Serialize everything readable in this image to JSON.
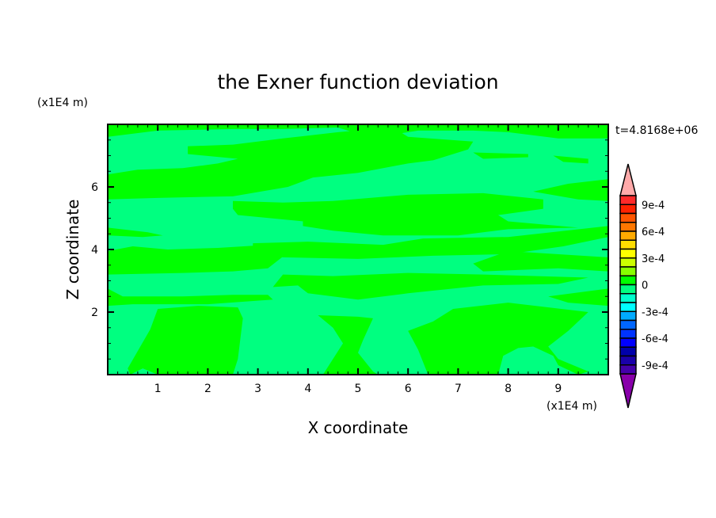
{
  "chart_data": {
    "type": "heatmap",
    "subtype": "filled-contour",
    "title": "the Exner function deviation",
    "xlabel": "X coordinate",
    "ylabel": "Z coordinate",
    "x_unit": "(x1E4 m)",
    "y_unit": "(x1E4 m)",
    "time_label": "t=4.8168e+06",
    "xlim": [
      0,
      10
    ],
    "ylim": [
      0,
      8
    ],
    "x_ticks": [
      1,
      2,
      3,
      4,
      5,
      6,
      7,
      8,
      9
    ],
    "y_ticks": [
      2,
      4,
      6
    ],
    "grid": false,
    "colorbar": {
      "levels_min": -0.001,
      "levels_max": 0.001,
      "level_step": 0.0001,
      "tick_values": [
        0.0009,
        0.0006,
        0.0003,
        0,
        -0.0003,
        -0.0006,
        -0.0009
      ],
      "tick_labels": [
        "9e-4",
        "6e-4",
        "3e-4",
        "0",
        "-3e-4",
        "-6e-4",
        "-9e-4"
      ],
      "colors_top_to_bottom": [
        "#ff2a2a",
        "#ff2200",
        "#ff5500",
        "#ff7700",
        "#ffaa00",
        "#ffdd00",
        "#ffff00",
        "#ccff00",
        "#88ff00",
        "#00ff00",
        "#00ff80",
        "#00ffcc",
        "#00ffff",
        "#00aaff",
        "#0066ff",
        "#0033ff",
        "#0000ff",
        "#0000aa",
        "#1a00aa",
        "#4400aa"
      ],
      "over_color": "#ffaaaa",
      "under_color": "#8800aa",
      "position": "right"
    },
    "field": {
      "background_level": [
        -0.0001,
        0
      ],
      "background_color": "#00ff80",
      "positive_level": [
        0,
        0.0001
      ],
      "positive_color": "#00ff00",
      "positive_regions": [
        [
          [
            0,
            8
          ],
          [
            10,
            8
          ],
          [
            10,
            7.55
          ],
          [
            9,
            7.55
          ],
          [
            8,
            7.75
          ],
          [
            7.3,
            7.8
          ],
          [
            6.2,
            7.8
          ],
          [
            5.8,
            7.7
          ],
          [
            5.5,
            7.75
          ],
          [
            4.9,
            7.75
          ],
          [
            4.6,
            7.9
          ],
          [
            3.5,
            7.85
          ],
          [
            2.5,
            7.85
          ],
          [
            1.0,
            7.8
          ],
          [
            0,
            7.6
          ]
        ],
        [
          [
            0,
            6.4
          ],
          [
            0.6,
            6.55
          ],
          [
            1.5,
            6.6
          ],
          [
            2.2,
            6.75
          ],
          [
            2.6,
            6.9
          ],
          [
            1.6,
            7.05
          ],
          [
            1.6,
            7.3
          ],
          [
            2.5,
            7.35
          ],
          [
            3.5,
            7.55
          ],
          [
            4.6,
            7.75
          ],
          [
            5.7,
            7.9
          ],
          [
            6.0,
            7.6
          ],
          [
            7.3,
            7.45
          ],
          [
            7.2,
            7.2
          ],
          [
            6.5,
            6.85
          ],
          [
            6.0,
            6.75
          ],
          [
            5.0,
            6.45
          ],
          [
            4.1,
            6.3
          ],
          [
            3.6,
            6.0
          ],
          [
            2.5,
            5.7
          ],
          [
            1.0,
            5.65
          ],
          [
            0,
            5.6
          ]
        ],
        [
          [
            7.3,
            7.1
          ],
          [
            8.4,
            7.05
          ],
          [
            8.4,
            6.95
          ],
          [
            7.5,
            6.9
          ]
        ],
        [
          [
            8.5,
            5.85
          ],
          [
            9.2,
            6.1
          ],
          [
            10,
            6.25
          ],
          [
            10,
            5.55
          ],
          [
            9.4,
            5.6
          ]
        ],
        [
          [
            8.9,
            7.0
          ],
          [
            9.6,
            6.9
          ],
          [
            9.6,
            6.75
          ],
          [
            9.1,
            6.8
          ]
        ],
        [
          [
            2.5,
            5.55
          ],
          [
            3.5,
            5.5
          ],
          [
            4.5,
            5.55
          ],
          [
            6.0,
            5.75
          ],
          [
            7.5,
            5.8
          ],
          [
            8.7,
            5.6
          ],
          [
            8.7,
            5.3
          ],
          [
            7.8,
            5.1
          ],
          [
            8.0,
            4.9
          ],
          [
            9.4,
            4.7
          ],
          [
            8.0,
            4.65
          ],
          [
            7.0,
            4.45
          ],
          [
            5.5,
            4.45
          ],
          [
            4.5,
            4.6
          ],
          [
            3.9,
            4.75
          ],
          [
            3.9,
            4.9
          ],
          [
            2.6,
            5.1
          ],
          [
            2.5,
            5.3
          ]
        ],
        [
          [
            2.9,
            4.2
          ],
          [
            4.0,
            4.25
          ],
          [
            5.5,
            4.15
          ],
          [
            6.3,
            4.35
          ],
          [
            8.0,
            4.4
          ],
          [
            10,
            4.75
          ],
          [
            10,
            4.4
          ],
          [
            9.1,
            4.1
          ],
          [
            8.0,
            3.85
          ],
          [
            6.5,
            3.8
          ],
          [
            5.0,
            3.7
          ],
          [
            3.5,
            3.75
          ],
          [
            2.9,
            3.95
          ]
        ],
        [
          [
            0,
            3.95
          ],
          [
            0.5,
            4.1
          ],
          [
            1.2,
            4.0
          ],
          [
            2.2,
            4.05
          ],
          [
            3.2,
            4.15
          ],
          [
            3.6,
            3.9
          ],
          [
            3.2,
            3.4
          ],
          [
            2.5,
            3.3
          ],
          [
            1.5,
            3.25
          ],
          [
            0,
            3.2
          ]
        ],
        [
          [
            0,
            4.7
          ],
          [
            0.8,
            4.55
          ],
          [
            1.1,
            4.45
          ],
          [
            0.7,
            4.4
          ],
          [
            0,
            4.45
          ]
        ],
        [
          [
            7.3,
            3.55
          ],
          [
            8,
            3.95
          ],
          [
            10,
            3.75
          ],
          [
            10,
            3.3
          ],
          [
            9,
            3.4
          ],
          [
            7.5,
            3.3
          ]
        ],
        [
          [
            3.5,
            3.2
          ],
          [
            4.5,
            3.15
          ],
          [
            6.0,
            3.25
          ],
          [
            7.5,
            3.2
          ],
          [
            9.6,
            3.1
          ],
          [
            9.0,
            2.9
          ],
          [
            7.5,
            2.85
          ],
          [
            6.0,
            2.6
          ],
          [
            5.0,
            2.4
          ],
          [
            4.0,
            2.6
          ],
          [
            3.8,
            2.85
          ],
          [
            3.3,
            2.8
          ]
        ],
        [
          [
            0,
            2.75
          ],
          [
            0.3,
            2.5
          ],
          [
            1.5,
            2.5
          ],
          [
            2.5,
            2.55
          ],
          [
            3.2,
            2.55
          ],
          [
            3.3,
            2.4
          ],
          [
            2.0,
            2.25
          ],
          [
            0.5,
            2.25
          ],
          [
            0,
            2.2
          ]
        ],
        [
          [
            8.8,
            2.5
          ],
          [
            10,
            2.75
          ],
          [
            10,
            2.2
          ],
          [
            9.2,
            2.3
          ]
        ],
        [
          [
            0.4,
            0.2
          ],
          [
            0.85,
            1.45
          ],
          [
            1.0,
            2.1
          ],
          [
            1.8,
            2.2
          ],
          [
            2.6,
            2.15
          ],
          [
            2.7,
            1.8
          ],
          [
            2.6,
            0.5
          ],
          [
            2.5,
            0
          ],
          [
            1.0,
            0
          ],
          [
            0.7,
            0.2
          ],
          [
            0.45,
            0
          ]
        ],
        [
          [
            4.2,
            1.9
          ],
          [
            5.0,
            1.85
          ],
          [
            5.3,
            1.8
          ],
          [
            5.1,
            1.1
          ],
          [
            5.0,
            0.7
          ],
          [
            5.3,
            0.1
          ],
          [
            5.4,
            0
          ],
          [
            4.3,
            0
          ],
          [
            4.5,
            0.5
          ],
          [
            4.7,
            1.0
          ],
          [
            4.5,
            1.5
          ]
        ],
        [
          [
            6.0,
            1.4
          ],
          [
            6.5,
            1.7
          ],
          [
            6.9,
            2.1
          ],
          [
            8.0,
            2.3
          ],
          [
            9.6,
            2.0
          ],
          [
            9.2,
            1.4
          ],
          [
            8.8,
            0.9
          ],
          [
            9.0,
            0.5
          ],
          [
            9.6,
            0.1
          ],
          [
            9.4,
            0
          ],
          [
            9.0,
            0.3
          ],
          [
            8.9,
            0.6
          ],
          [
            8.5,
            0.9
          ],
          [
            8.2,
            0.85
          ],
          [
            7.9,
            0.6
          ],
          [
            7.8,
            0
          ],
          [
            6.4,
            0
          ],
          [
            6.2,
            0.8
          ]
        ]
      ]
    }
  }
}
